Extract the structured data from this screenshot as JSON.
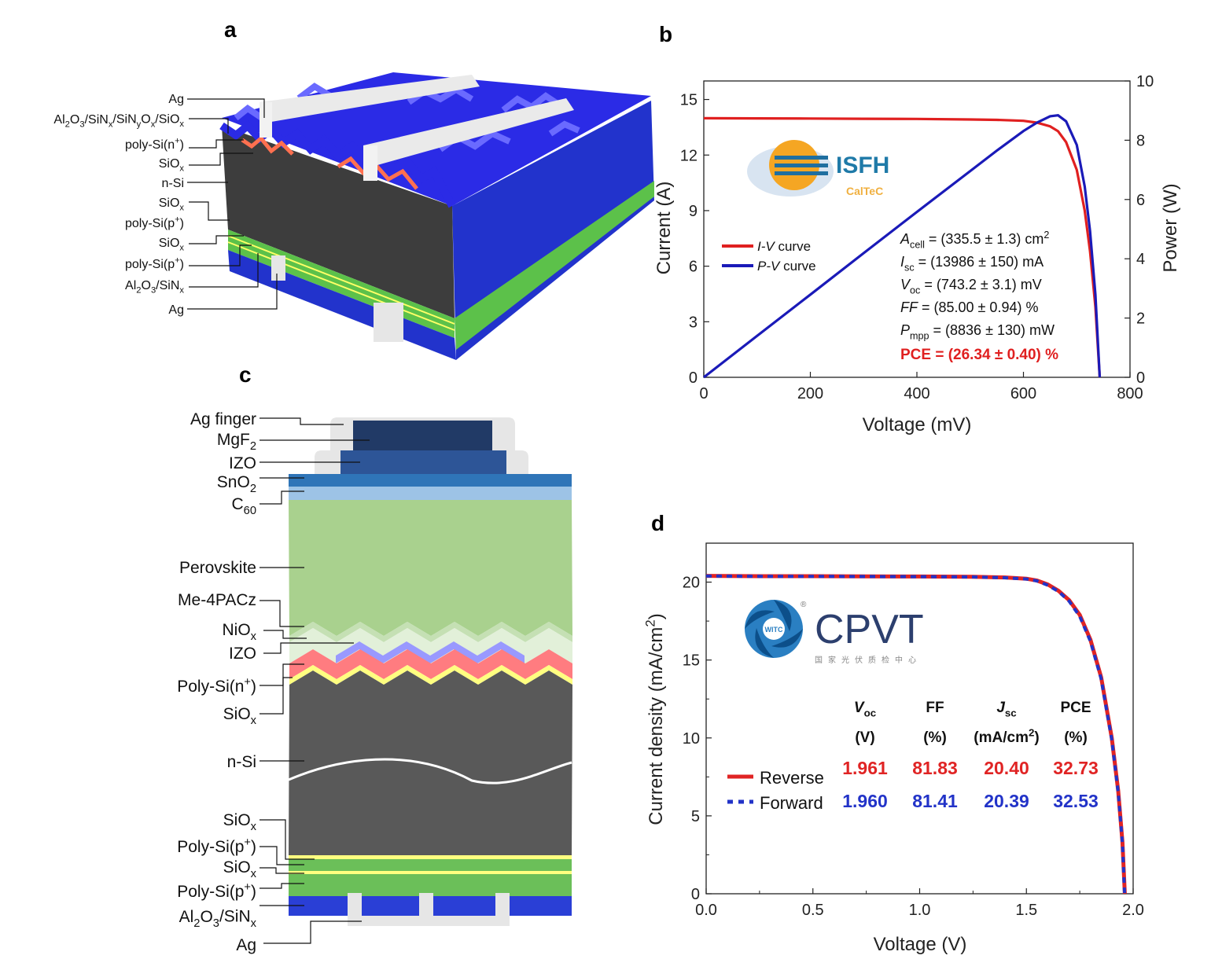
{
  "panels": {
    "a": "a",
    "b": "b",
    "c": "c",
    "d": "d"
  },
  "panel_a": {
    "labels": [
      [
        [
          "Ag",
          ""
        ]
      ],
      [
        [
          "Al",
          ""
        ],
        [
          "2",
          "sub"
        ],
        [
          "O",
          ""
        ],
        [
          "3",
          "sub"
        ],
        [
          "/SiN",
          ""
        ],
        [
          "x",
          "sub"
        ],
        [
          "/SiN",
          ""
        ],
        [
          "y",
          "sub"
        ],
        [
          "O",
          ""
        ],
        [
          "x",
          "sub"
        ],
        [
          "/SiO",
          ""
        ],
        [
          "x",
          "sub"
        ]
      ],
      [
        [
          "poly-Si(n",
          ""
        ],
        [
          "+",
          "sup"
        ],
        [
          ")",
          ""
        ]
      ],
      [
        [
          "SiO",
          ""
        ],
        [
          "x",
          "sub"
        ]
      ],
      [
        [
          "n-Si",
          ""
        ]
      ],
      [
        [
          "SiO",
          ""
        ],
        [
          "x",
          "sub"
        ]
      ],
      [
        [
          "poly-Si(p",
          ""
        ],
        [
          "+",
          "sup"
        ],
        [
          ")",
          ""
        ]
      ],
      [
        [
          "SiO",
          ""
        ],
        [
          "x",
          "sub"
        ]
      ],
      [
        [
          "poly-Si(p",
          ""
        ],
        [
          "+",
          "sup"
        ],
        [
          ")",
          ""
        ]
      ],
      [
        [
          "Al",
          ""
        ],
        [
          "2",
          "sub"
        ],
        [
          "O",
          ""
        ],
        [
          "3",
          "sub"
        ],
        [
          "/SiN",
          ""
        ],
        [
          "x",
          "sub"
        ]
      ],
      [
        [
          "Ag",
          ""
        ]
      ]
    ]
  },
  "panel_c": {
    "labels": [
      [
        [
          "Ag finger",
          ""
        ]
      ],
      [
        [
          "MgF",
          ""
        ],
        [
          "2",
          "sub"
        ]
      ],
      [
        [
          "IZO",
          ""
        ]
      ],
      [
        [
          "SnO",
          ""
        ],
        [
          "2",
          "sub"
        ]
      ],
      [
        [
          "C",
          ""
        ],
        [
          "60",
          "sub"
        ]
      ],
      [
        [
          "Perovskite",
          ""
        ]
      ],
      [
        [
          "Me-4PACz",
          ""
        ]
      ],
      [
        [
          "NiO",
          ""
        ],
        [
          "x",
          "sub"
        ]
      ],
      [
        [
          "IZO",
          ""
        ]
      ],
      [
        [
          "Poly-Si(n",
          ""
        ],
        [
          "+",
          "sup"
        ],
        [
          ")",
          ""
        ]
      ],
      [
        [
          "SiO",
          ""
        ],
        [
          "x",
          "sub"
        ]
      ],
      [
        [
          "n-Si",
          ""
        ]
      ],
      [
        [
          "SiO",
          ""
        ],
        [
          "x",
          "sub"
        ]
      ],
      [
        [
          "Poly-Si(p",
          ""
        ],
        [
          "+",
          "sup"
        ],
        [
          ")",
          ""
        ]
      ],
      [
        [
          "SiO",
          ""
        ],
        [
          "x",
          "sub"
        ]
      ],
      [
        [
          "Poly-Si(p",
          ""
        ],
        [
          "+",
          "sup"
        ],
        [
          ")",
          ""
        ]
      ],
      [
        [
          "Al",
          ""
        ],
        [
          "2",
          "sub"
        ],
        [
          "O",
          ""
        ],
        [
          "3",
          "sub"
        ],
        [
          "/SiN",
          ""
        ],
        [
          "x",
          "sub"
        ]
      ],
      [
        [
          "Ag",
          ""
        ]
      ]
    ],
    "colors": {
      "mgf2": "#213a66",
      "izo_top": "#2d5597",
      "sno2": "#2f75b8",
      "c60": "#9dc3e6",
      "perovskite": "#a9d18e",
      "me4pacz": "#c5e0b4",
      "niox": "#e2f0d9",
      "izo": "#9999ff",
      "poly_n": "#ff7c80",
      "siox": "#ffff80",
      "n_si": "#595959",
      "poly_p": "#6bbf59",
      "al2o3": "#2a3fd6",
      "ag": "#e6e6e6"
    }
  },
  "logos": {
    "isfh": {
      "name": "ISFH",
      "sub": "CalTeC"
    },
    "cpvt": {
      "name": "CPVT",
      "sub": "国家光伏质检中心",
      "badge": "WITC",
      "mark": "®"
    }
  },
  "chart_data": [
    {
      "type": "line",
      "panel": "b",
      "title": "",
      "xlabel": "Voltage (mV)",
      "ylabel": "Current (A)",
      "y2label": "Power (W)",
      "xlim": [
        0,
        800
      ],
      "ylim": [
        0,
        16
      ],
      "y2lim": [
        0,
        10
      ],
      "x_ticks": [
        "0",
        "200",
        "400",
        "600",
        "800"
      ],
      "y_ticks": [
        "0",
        "3",
        "6",
        "9",
        "12",
        "15"
      ],
      "y2_ticks": [
        "0",
        "2",
        "4",
        "6",
        "8",
        "10"
      ],
      "grid": false,
      "legend_placement": "middle-left",
      "series": [
        {
          "name": "I-V curve",
          "name_rich": [
            [
              "I-V",
              "i"
            ],
            [
              " curve",
              ""
            ]
          ],
          "axis": "left",
          "color": "#e02020",
          "x": [
            0,
            100,
            200,
            300,
            400,
            500,
            550,
            600,
            625,
            650,
            665,
            680,
            700,
            715,
            725,
            735,
            743.2
          ],
          "y": [
            13.99,
            13.98,
            13.97,
            13.96,
            13.95,
            13.92,
            13.9,
            13.85,
            13.75,
            13.55,
            13.29,
            12.7,
            11.2,
            9.0,
            6.8,
            3.8,
            0
          ]
        },
        {
          "name": "P-V curve",
          "name_rich": [
            [
              "P-V",
              "i"
            ],
            [
              " curve",
              ""
            ]
          ],
          "axis": "right",
          "color": "#1a1ab8",
          "x": [
            0,
            100,
            200,
            300,
            400,
            500,
            550,
            600,
            625,
            650,
            665,
            680,
            700,
            715,
            725,
            735,
            743.2
          ],
          "y": [
            0,
            1.4,
            2.79,
            4.19,
            5.58,
            6.96,
            7.65,
            8.31,
            8.59,
            8.81,
            8.84,
            8.64,
            7.84,
            6.44,
            4.93,
            2.79,
            0
          ]
        }
      ],
      "annotations": [
        [
          [
            "A",
            "i"
          ],
          [
            "cell",
            "sub"
          ],
          [
            " = (335.5 ± 1.3) cm",
            ""
          ],
          [
            "2",
            "sup"
          ]
        ],
        [
          [
            "I",
            "i"
          ],
          [
            "sc",
            "sub"
          ],
          [
            " = (13986 ± 150) mA",
            ""
          ]
        ],
        [
          [
            "V",
            "i"
          ],
          [
            "oc",
            "sub"
          ],
          [
            " = (743.2 ± 3.1) mV",
            ""
          ]
        ],
        [
          [
            "FF",
            "i"
          ],
          [
            " = (85.00 ± 0.94) %",
            ""
          ]
        ],
        [
          [
            "P",
            "i"
          ],
          [
            "mpp",
            "sub"
          ],
          [
            " = (8836 ± 130) mW",
            ""
          ]
        ]
      ],
      "pce_annotation": "PCE = (26.34 ± 0.40) %",
      "pce_color": "#e02020"
    },
    {
      "type": "line",
      "panel": "d",
      "title": "",
      "xlabel": "Voltage (V)",
      "ylabel_rich": [
        [
          "Current density (mA/cm",
          ""
        ],
        [
          "2",
          "sup"
        ],
        [
          ")",
          ""
        ]
      ],
      "ylabel": "Current density (mA/cm2)",
      "xlim": [
        0,
        2.0
      ],
      "ylim": [
        0,
        22.5
      ],
      "x_ticks": [
        "0.0",
        "0.5",
        "1.0",
        "1.5",
        "2.0"
      ],
      "y_ticks": [
        "0",
        "5",
        "10",
        "15",
        "20"
      ],
      "grid": false,
      "legend_placement": "middle-left",
      "series": [
        {
          "name": "Reverse",
          "color": "#e02424",
          "style": "solid",
          "x": [
            0,
            0.25,
            0.5,
            0.75,
            1.0,
            1.25,
            1.4,
            1.5,
            1.55,
            1.6,
            1.65,
            1.7,
            1.75,
            1.8,
            1.85,
            1.9,
            1.93,
            1.95,
            1.961
          ],
          "y": [
            20.4,
            20.38,
            20.38,
            20.37,
            20.36,
            20.34,
            20.3,
            20.22,
            20.1,
            19.85,
            19.45,
            18.85,
            17.9,
            16.3,
            13.9,
            10.0,
            6.6,
            3.3,
            0
          ]
        },
        {
          "name": "Forward",
          "color": "#2233c8",
          "style": "dashed",
          "x": [
            0,
            0.25,
            0.5,
            0.75,
            1.0,
            1.25,
            1.4,
            1.5,
            1.55,
            1.6,
            1.65,
            1.7,
            1.75,
            1.8,
            1.85,
            1.9,
            1.93,
            1.95,
            1.96
          ],
          "y": [
            20.39,
            20.37,
            20.37,
            20.36,
            20.35,
            20.33,
            20.28,
            20.2,
            20.08,
            19.8,
            19.4,
            18.78,
            17.8,
            16.2,
            13.8,
            9.9,
            6.5,
            3.2,
            0
          ]
        }
      ],
      "table": {
        "headers": [
          [
            [
              "V",
              "i"
            ],
            [
              "oc",
              "sub"
            ]
          ],
          [
            [
              "FF",
              ""
            ]
          ],
          [
            [
              "J",
              "i"
            ],
            [
              "sc",
              "sub"
            ]
          ],
          [
            [
              "PCE",
              ""
            ]
          ]
        ],
        "units": [
          [
            [
              "(V)",
              ""
            ]
          ],
          [
            [
              "(%)",
              ""
            ]
          ],
          [
            [
              "(mA/cm",
              ""
            ],
            [
              "2",
              "sup"
            ],
            [
              ")",
              ""
            ]
          ],
          [
            [
              "(%)",
              ""
            ]
          ]
        ],
        "rows": [
          {
            "label": "Reverse",
            "values": [
              "1.961",
              "81.83",
              "20.40",
              "32.73"
            ]
          },
          {
            "label": "Forward",
            "values": [
              "1.960",
              "81.41",
              "20.39",
              "32.53"
            ]
          }
        ]
      }
    }
  ]
}
